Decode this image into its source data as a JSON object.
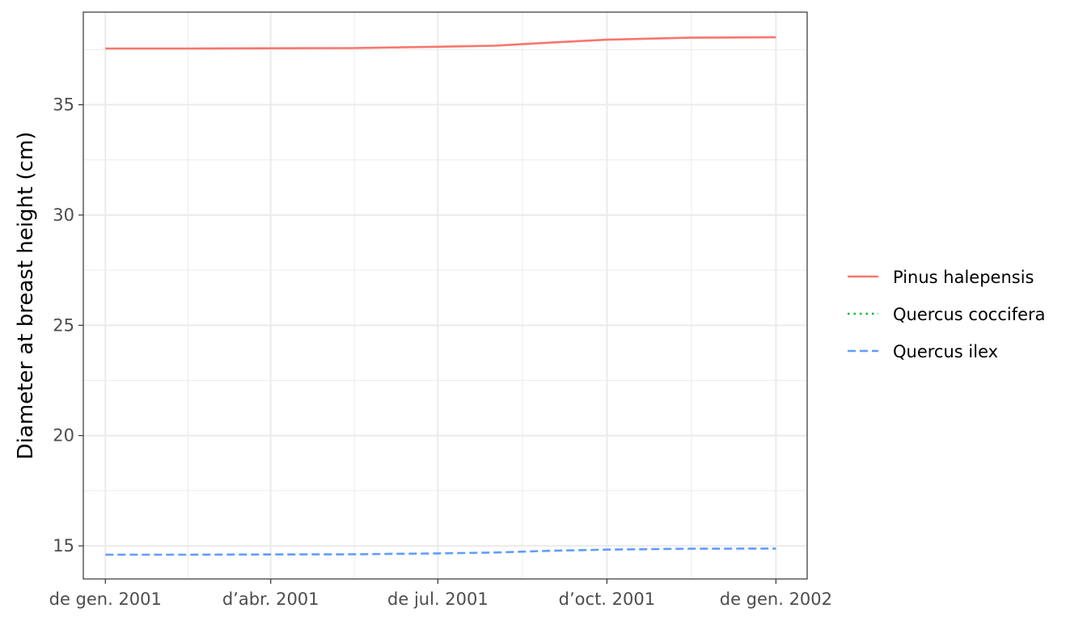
{
  "chart_data": {
    "type": "line",
    "title": "",
    "xlabel": "",
    "ylabel": "Diameter at breast height  (cm)",
    "x_ticks": [
      "2001-01-01",
      "2001-04-01",
      "2001-07-01",
      "2001-10-01",
      "2002-01-01"
    ],
    "x_tick_labels": [
      "de gen. 2001",
      "d’abr. 2001",
      "de jul. 2001",
      "d’oct. 2001",
      "de gen. 2002"
    ],
    "xlim": [
      "2000-12-20",
      "2002-01-18"
    ],
    "ylim": [
      13.5,
      39.2
    ],
    "y_ticks": [
      15,
      20,
      25,
      30,
      35
    ],
    "y_tick_labels": [
      "15",
      "20",
      "25",
      "30",
      "35"
    ],
    "grid": true,
    "legend_position": "right",
    "series": [
      {
        "name": "Pinus halepensis",
        "color": "#F8766D",
        "dash": "solid",
        "x": [
          "2001-01-01",
          "2001-02-15",
          "2001-04-01",
          "2001-05-15",
          "2001-07-01",
          "2001-08-01",
          "2001-09-01",
          "2001-10-01",
          "2001-11-15",
          "2002-01-01"
        ],
        "values": [
          37.55,
          37.55,
          37.56,
          37.57,
          37.63,
          37.68,
          37.82,
          37.95,
          38.04,
          38.06
        ]
      },
      {
        "name": "Quercus coccifera",
        "color": "#00BA38",
        "dash": "dotted",
        "x": [],
        "values": []
      },
      {
        "name": "Quercus ilex",
        "color": "#619CFF",
        "dash": "dashed",
        "x": [
          "2001-01-01",
          "2001-02-15",
          "2001-04-01",
          "2001-05-15",
          "2001-07-01",
          "2001-08-01",
          "2001-09-01",
          "2001-10-01",
          "2001-11-15",
          "2002-01-01"
        ],
        "values": [
          14.6,
          14.6,
          14.61,
          14.62,
          14.66,
          14.7,
          14.78,
          14.83,
          14.87,
          14.88
        ]
      }
    ]
  }
}
